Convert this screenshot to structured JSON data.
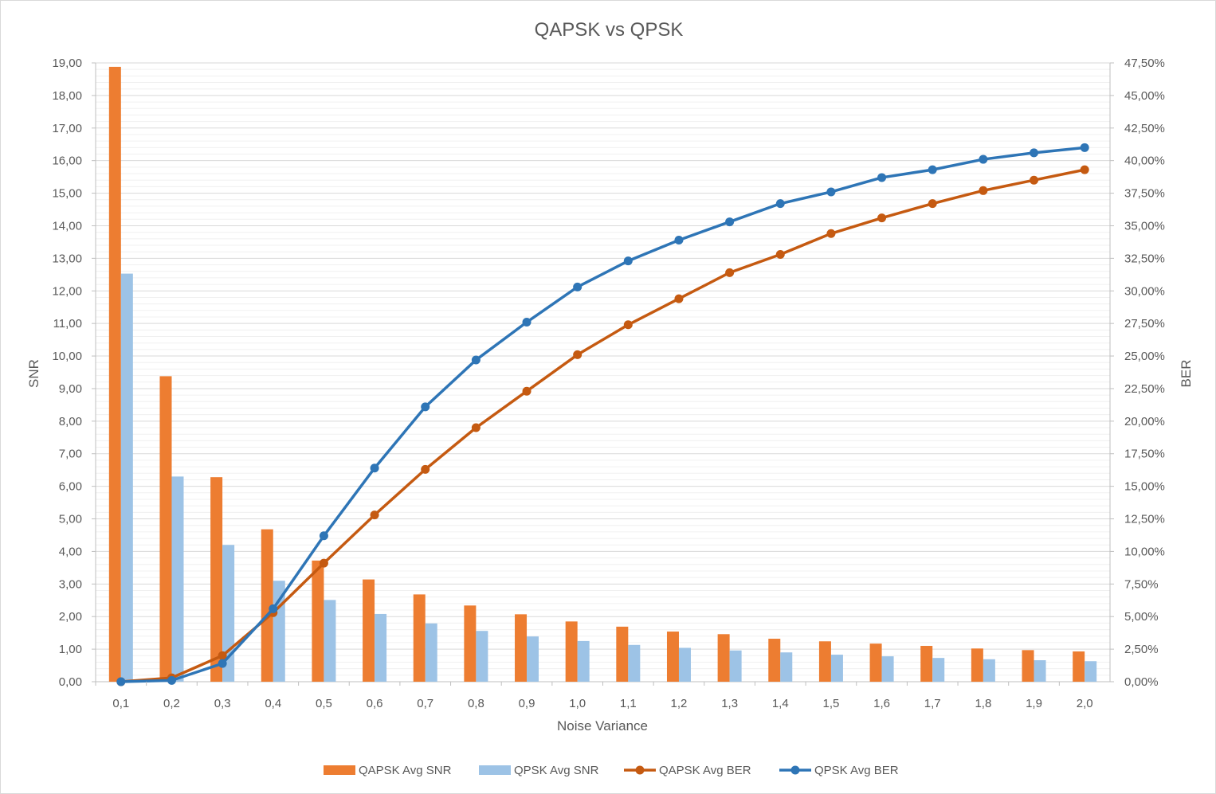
{
  "chart_data": {
    "type": "bar",
    "title": "QAPSK vs QPSK",
    "xlabel": "Noise Variance",
    "ylabel": "SNR",
    "y2label": "BER",
    "ylim": [
      0,
      19
    ],
    "y2lim": [
      0,
      47.5
    ],
    "grid": true,
    "legend_position": "bottom",
    "categories": [
      "0,1",
      "0,2",
      "0,3",
      "0,4",
      "0,5",
      "0,6",
      "0,7",
      "0,8",
      "0,9",
      "1,0",
      "1,1",
      "1,2",
      "1,3",
      "1,4",
      "1,5",
      "1,6",
      "1,7",
      "1,8",
      "1,9",
      "2,0"
    ],
    "y_ticks": [
      "0,00",
      "1,00",
      "2,00",
      "3,00",
      "4,00",
      "5,00",
      "6,00",
      "7,00",
      "8,00",
      "9,00",
      "10,00",
      "11,00",
      "12,00",
      "13,00",
      "14,00",
      "15,00",
      "16,00",
      "17,00",
      "18,00",
      "19,00"
    ],
    "y2_ticks": [
      "0,00%",
      "2,50%",
      "5,00%",
      "7,50%",
      "10,00%",
      "12,50%",
      "15,00%",
      "17,50%",
      "20,00%",
      "22,50%",
      "25,00%",
      "27,50%",
      "30,00%",
      "32,50%",
      "35,00%",
      "37,50%",
      "40,00%",
      "42,50%",
      "45,00%",
      "47,50%"
    ],
    "series": [
      {
        "name": "QAPSK Avg SNR",
        "kind": "bar",
        "axis": "left",
        "color": "#ed7d31",
        "values": [
          18.88,
          9.38,
          6.28,
          4.68,
          3.72,
          3.14,
          2.68,
          2.34,
          2.07,
          1.85,
          1.69,
          1.54,
          1.46,
          1.32,
          1.24,
          1.17,
          1.1,
          1.02,
          0.97,
          0.93
        ]
      },
      {
        "name": "QPSK Avg SNR",
        "kind": "bar",
        "axis": "left",
        "color": "#9dc3e6",
        "values": [
          12.53,
          6.3,
          4.2,
          3.1,
          2.51,
          2.08,
          1.79,
          1.56,
          1.39,
          1.25,
          1.13,
          1.04,
          0.96,
          0.9,
          0.83,
          0.78,
          0.73,
          0.69,
          0.66,
          0.63
        ]
      },
      {
        "name": "QAPSK Avg BER",
        "kind": "line",
        "axis": "right",
        "color": "#c55a11",
        "values": [
          0.0,
          0.3,
          2.0,
          5.3,
          9.1,
          12.8,
          16.3,
          19.5,
          22.3,
          25.1,
          27.4,
          29.4,
          31.4,
          32.8,
          34.4,
          35.6,
          36.7,
          37.7,
          38.5,
          39.3
        ]
      },
      {
        "name": "QPSK Avg BER",
        "kind": "line",
        "axis": "right",
        "color": "#2e75b6",
        "values": [
          0.0,
          0.1,
          1.4,
          5.6,
          11.2,
          16.4,
          21.1,
          24.7,
          27.6,
          30.3,
          32.3,
          33.9,
          35.3,
          36.7,
          37.6,
          38.7,
          39.3,
          40.1,
          40.6,
          41.0
        ]
      }
    ]
  }
}
